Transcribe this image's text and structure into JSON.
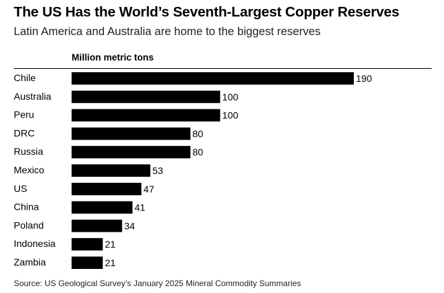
{
  "title": "The US Has the World’s Seventh-Largest Copper Reserves",
  "subtitle": "Latin America and Australia are home to the biggest reserves",
  "unit_label": "Million metric tons",
  "source": "Source: US Geological Survey’s January 2025 Mineral Commodity Summaries",
  "colors": {
    "bar": "#000000"
  },
  "chart_data": {
    "type": "bar",
    "orientation": "horizontal",
    "title": "The US Has the World’s Seventh-Largest Copper Reserves",
    "subtitle": "Latin America and Australia are home to the biggest reserves",
    "xlabel": "Million metric tons",
    "ylabel": "",
    "categories": [
      "Chile",
      "Australia",
      "Peru",
      "DRC",
      "Russia",
      "Mexico",
      "US",
      "China",
      "Poland",
      "Indonesia",
      "Zambia"
    ],
    "values": [
      190,
      100,
      100,
      80,
      80,
      53,
      47,
      41,
      34,
      21,
      21
    ],
    "xlim": [
      0,
      190
    ],
    "grid": false,
    "legend": "none"
  }
}
